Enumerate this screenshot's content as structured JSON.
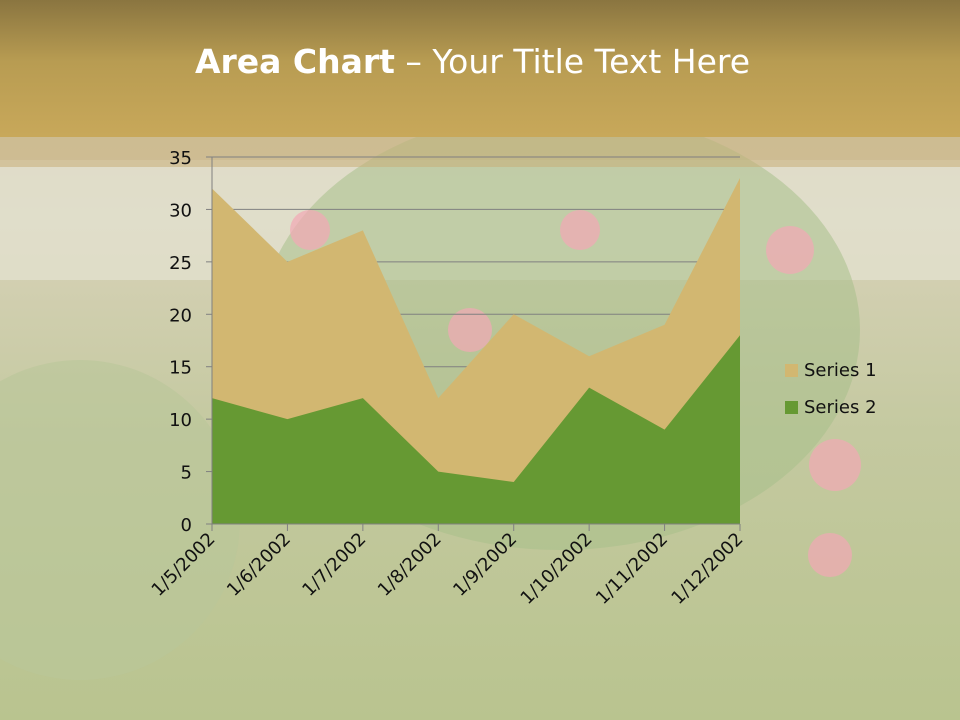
{
  "slide": {
    "title_bold": "Area Chart",
    "title_rest": " – Your Title Text Here"
  },
  "chart_data": {
    "type": "area",
    "stacked": false,
    "categories": [
      "1/5/2002",
      "1/6/2002",
      "1/7/2002",
      "1/8/2002",
      "1/9/2002",
      "1/10/2002",
      "1/11/2002",
      "1/12/2002"
    ],
    "series": [
      {
        "name": "Series 1",
        "values": [
          32,
          25,
          28,
          12,
          20,
          16,
          19,
          33
        ],
        "color": "#d2b771"
      },
      {
        "name": "Series 2",
        "values": [
          12,
          10,
          12,
          5,
          4,
          13,
          9,
          18
        ],
        "color": "#669933"
      }
    ],
    "ylim": [
      0,
      35
    ],
    "yticks": [
      0,
      5,
      10,
      15,
      20,
      25,
      30,
      35
    ],
    "grid": true,
    "legend": "right"
  }
}
